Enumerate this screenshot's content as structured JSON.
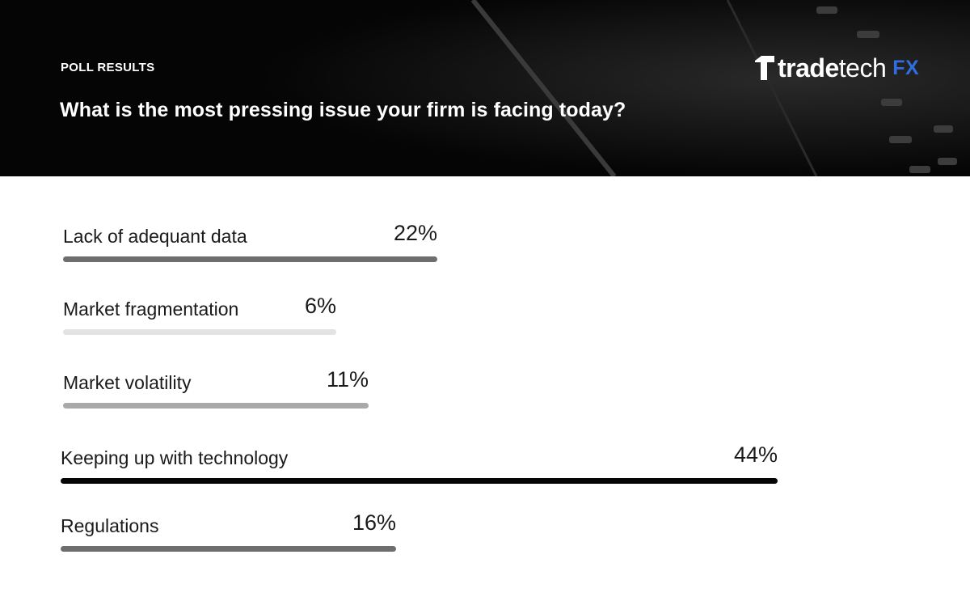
{
  "header": {
    "eyebrow": "POLL RESULTS",
    "question": "What is the most pressing issue your firm is facing today?"
  },
  "logo": {
    "word_bold": "trade",
    "word_thin": "tech",
    "suffix": "FX",
    "suffix_color": "#2f6de0",
    "icon": "stepped-t-logo-icon"
  },
  "chart_data": {
    "type": "bar",
    "orientation": "horizontal",
    "categories": [
      "Lack of adequant data",
      "Market fragmentation",
      "Market volatility",
      "Keeping up with technology",
      "Regulations"
    ],
    "values": [
      22,
      6,
      11,
      44,
      16
    ],
    "value_labels": [
      "22%",
      "6%",
      "11%",
      "44%",
      "16%"
    ],
    "bar_colors": [
      "#6e6e6e",
      "#e3e3e3",
      "#a9a9a9",
      "#050505",
      "#6e6e6e"
    ],
    "unit": "%",
    "grid": false,
    "legend": "none"
  }
}
